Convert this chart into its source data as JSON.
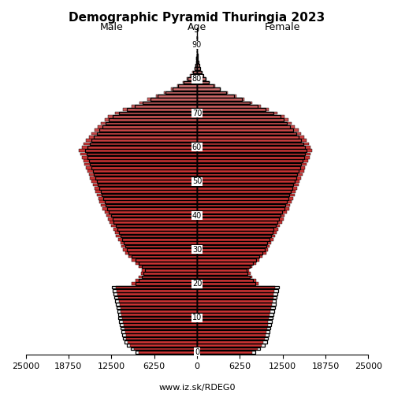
{
  "title": "Demographic Pyramid Thuringia 2023",
  "label_male": "Male",
  "label_female": "Female",
  "label_age": "Age",
  "footer": "www.iz.sk/RDEG0",
  "xlim": 25000,
  "ages": [
    0,
    1,
    2,
    3,
    4,
    5,
    6,
    7,
    8,
    9,
    10,
    11,
    12,
    13,
    14,
    15,
    16,
    17,
    18,
    19,
    20,
    21,
    22,
    23,
    24,
    25,
    26,
    27,
    28,
    29,
    30,
    31,
    32,
    33,
    34,
    35,
    36,
    37,
    38,
    39,
    40,
    41,
    42,
    43,
    44,
    45,
    46,
    47,
    48,
    49,
    50,
    51,
    52,
    53,
    54,
    55,
    56,
    57,
    58,
    59,
    60,
    61,
    62,
    63,
    64,
    65,
    66,
    67,
    68,
    69,
    70,
    71,
    72,
    73,
    74,
    75,
    76,
    77,
    78,
    79,
    80,
    81,
    82,
    83,
    84,
    85,
    86,
    87,
    88,
    89,
    90,
    91,
    92
  ],
  "male": [
    8500,
    9200,
    9800,
    10100,
    10300,
    10400,
    10500,
    10600,
    10700,
    10800,
    10900,
    11000,
    11100,
    11200,
    11300,
    11400,
    11500,
    11600,
    11700,
    11800,
    9500,
    9000,
    8500,
    8200,
    8000,
    8500,
    9000,
    9500,
    10000,
    10500,
    10800,
    11000,
    11200,
    11500,
    11800,
    12000,
    12200,
    12500,
    12800,
    13000,
    13200,
    13500,
    13800,
    14000,
    14200,
    14400,
    14600,
    14800,
    15000,
    15200,
    15400,
    15600,
    15800,
    16000,
    16200,
    16400,
    16600,
    16800,
    17000,
    17200,
    16800,
    16500,
    16200,
    15800,
    15400,
    15000,
    14500,
    14000,
    13500,
    13000,
    12000,
    10800,
    9600,
    8400,
    7200,
    6000,
    4800,
    3800,
    2900,
    2100,
    1500,
    1000,
    650,
    400,
    240,
    140,
    80,
    45,
    25,
    13,
    6,
    3,
    1
  ],
  "female": [
    8100,
    8800,
    9400,
    9700,
    9900,
    10000,
    10100,
    10200,
    10300,
    10400,
    10500,
    10600,
    10700,
    10800,
    10900,
    11000,
    11100,
    11200,
    11300,
    11400,
    9000,
    8600,
    8100,
    7800,
    7600,
    8100,
    8600,
    9100,
    9600,
    10100,
    10400,
    10600,
    10800,
    11100,
    11400,
    11600,
    11800,
    12100,
    12400,
    12600,
    12800,
    13100,
    13400,
    13600,
    13800,
    14000,
    14200,
    14400,
    14600,
    14800,
    15000,
    15200,
    15400,
    15600,
    15800,
    16000,
    16200,
    16400,
    16600,
    16800,
    16600,
    16300,
    16000,
    15600,
    15200,
    14800,
    14300,
    13800,
    13300,
    12800,
    11700,
    10500,
    9300,
    8100,
    6900,
    5700,
    4500,
    3500,
    2600,
    1800,
    1300,
    950,
    680,
    470,
    320,
    210,
    135,
    85,
    52,
    30,
    16,
    8,
    3
  ],
  "male_ref": [
    8925,
    9660,
    10290,
    10605,
    10815,
    10920,
    11025,
    11130,
    11235,
    11340,
    11445,
    11550,
    11655,
    11760,
    11865,
    11970,
    12075,
    12180,
    12285,
    12390,
    9025,
    8550,
    8075,
    7790,
    7600,
    8075,
    8550,
    9025,
    9500,
    9975,
    10260,
    10450,
    10640,
    10925,
    11210,
    11400,
    11590,
    11875,
    12160,
    12350,
    12540,
    12825,
    13110,
    13300,
    13490,
    13680,
    13870,
    14060,
    14250,
    14440,
    14630,
    14820,
    15010,
    15200,
    15390,
    15580,
    15770,
    15960,
    16150,
    16340,
    15960,
    15675,
    15390,
    15010,
    14630,
    14250,
    13775,
    13300,
    12825,
    12350,
    11400,
    10260,
    9120,
    7980,
    6840,
    5700,
    4560,
    3610,
    2755,
    1995,
    1425,
    950,
    618,
    380,
    228,
    133,
    76,
    43,
    24,
    12,
    6,
    3,
    1
  ],
  "female_ref": [
    8505,
    9240,
    9870,
    10185,
    10395,
    10500,
    10605,
    10710,
    10815,
    10920,
    11025,
    11130,
    11235,
    11340,
    11445,
    11550,
    11655,
    11760,
    11865,
    11970,
    8550,
    8170,
    7695,
    7410,
    7220,
    7695,
    8170,
    8645,
    9120,
    9595,
    9880,
    10070,
    10260,
    10545,
    10830,
    11020,
    11210,
    11495,
    11780,
    11970,
    12160,
    12445,
    12730,
    12920,
    13110,
    13300,
    13490,
    13680,
    13870,
    14060,
    14250,
    14440,
    14630,
    14820,
    15010,
    15200,
    15390,
    15580,
    15770,
    15960,
    15770,
    15485,
    15200,
    14820,
    14440,
    14060,
    13585,
    13110,
    12635,
    12160,
    11115,
    9975,
    8835,
    7695,
    6555,
    5415,
    4275,
    3325,
    2470,
    1710,
    1235,
    903,
    646,
    447,
    304,
    200,
    128,
    81,
    49,
    29,
    15,
    8,
    3
  ],
  "bar_height": 0.85,
  "color_young": "#cc3333",
  "color_old": "#cc9999",
  "age_threshold": 58,
  "title_fontsize": 11,
  "label_fontsize": 9,
  "tick_fontsize": 8,
  "footer_fontsize": 8
}
